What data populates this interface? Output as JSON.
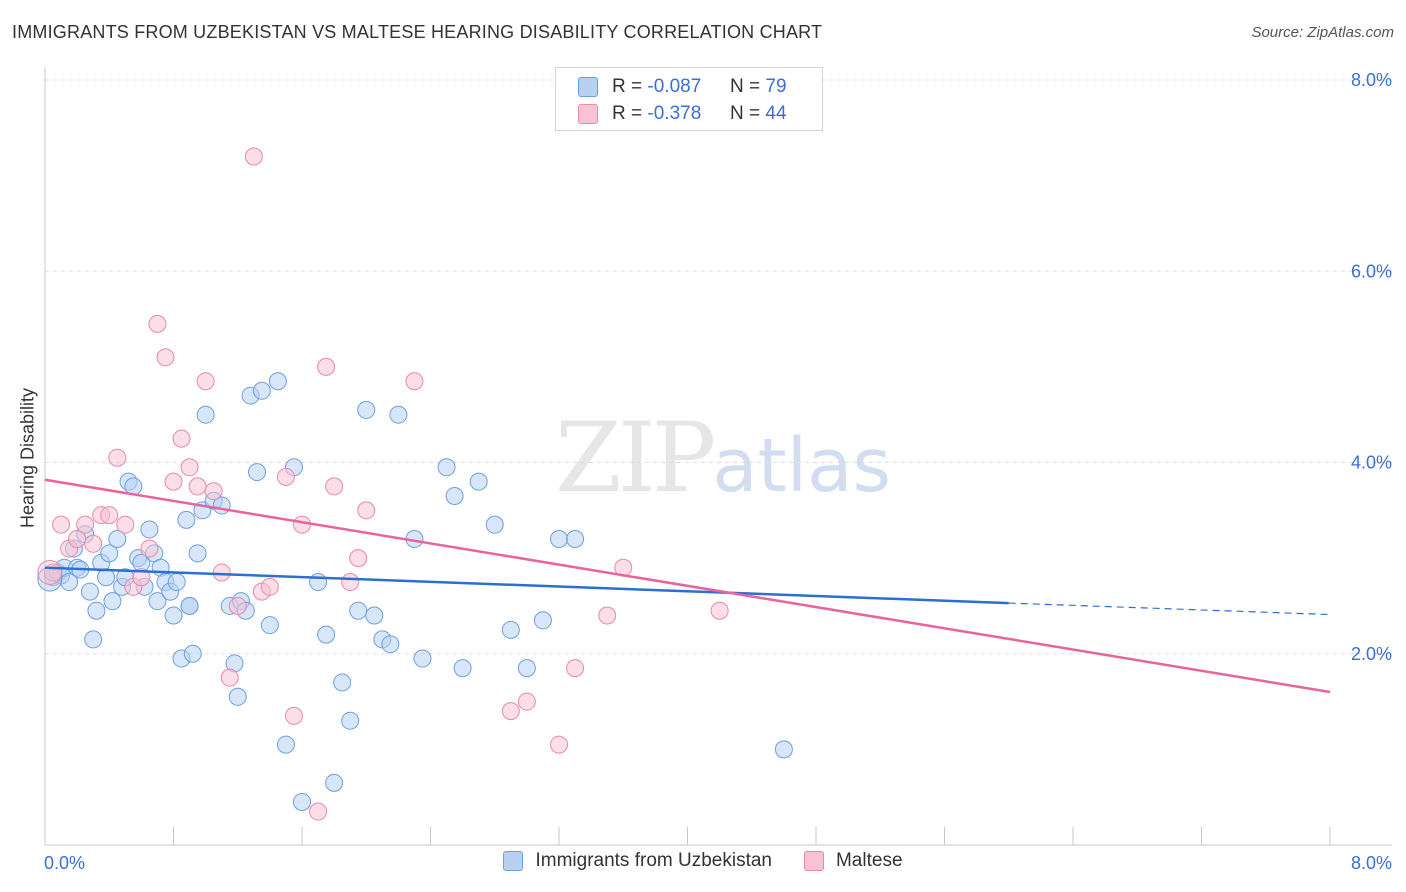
{
  "title": "IMMIGRANTS FROM UZBEKISTAN VS MALTESE HEARING DISABILITY CORRELATION CHART",
  "source": "Source: ZipAtlas.com",
  "watermark": {
    "zip": "ZIP",
    "atlas": "atlas"
  },
  "legend": {
    "rows": [
      {
        "r_label": "R =",
        "r_value": "-0.087",
        "n_label": "N =",
        "n_value": "79"
      },
      {
        "r_label": "R =",
        "r_value": "-0.378",
        "n_label": "N =",
        "n_value": "44"
      }
    ]
  },
  "colors": {
    "blue_fill": "#b7d1f2",
    "blue_stroke": "#6f9fdc",
    "blue_line": "#2c6fd1",
    "pink_fill": "#f7c3d4",
    "pink_stroke": "#e889a8",
    "pink_line": "#e8649a",
    "tick_label": "#3b6fd4",
    "grid": "#dedede"
  },
  "chart_data": {
    "type": "scatter",
    "title": "IMMIGRANTS FROM UZBEKISTAN VS MALTESE HEARING DISABILITY CORRELATION CHART",
    "xlabel": "",
    "ylabel": "Hearing Disability",
    "xlim": [
      0,
      8
    ],
    "ylim": [
      0,
      8
    ],
    "x_tick_labels": [
      "0.0%",
      "8.0%"
    ],
    "y_ticks": [
      2,
      4,
      6,
      8
    ],
    "y_tick_labels": [
      "2.0%",
      "4.0%",
      "6.0%",
      "8.0%"
    ],
    "series": [
      {
        "name": "Immigrants from Uzbekistan",
        "r": -0.087,
        "n": 79,
        "trend": {
          "x0": 0.0,
          "y0": 2.9,
          "x1": 6.0,
          "y1": 2.53,
          "dash_to_x": 8.0,
          "dash_to_y": 2.41
        },
        "points": [
          [
            0.05,
            2.8
          ],
          [
            0.08,
            2.85
          ],
          [
            0.1,
            2.82
          ],
          [
            0.12,
            2.9
          ],
          [
            0.15,
            2.75
          ],
          [
            0.18,
            3.1
          ],
          [
            0.2,
            2.9
          ],
          [
            0.22,
            2.88
          ],
          [
            0.25,
            3.25
          ],
          [
            0.28,
            2.65
          ],
          [
            0.3,
            2.15
          ],
          [
            0.32,
            2.45
          ],
          [
            0.35,
            2.95
          ],
          [
            0.38,
            2.8
          ],
          [
            0.4,
            3.05
          ],
          [
            0.42,
            2.55
          ],
          [
            0.45,
            3.2
          ],
          [
            0.48,
            2.7
          ],
          [
            0.5,
            2.8
          ],
          [
            0.52,
            3.8
          ],
          [
            0.55,
            3.75
          ],
          [
            0.58,
            3.0
          ],
          [
            0.6,
            2.95
          ],
          [
            0.62,
            2.7
          ],
          [
            0.65,
            3.3
          ],
          [
            0.68,
            3.05
          ],
          [
            0.7,
            2.55
          ],
          [
            0.72,
            2.9
          ],
          [
            0.75,
            2.75
          ],
          [
            0.78,
            2.65
          ],
          [
            0.8,
            2.4
          ],
          [
            0.82,
            2.75
          ],
          [
            0.85,
            1.95
          ],
          [
            0.88,
            3.4
          ],
          [
            0.9,
            2.5
          ],
          [
            0.92,
            2.0
          ],
          [
            0.95,
            3.05
          ],
          [
            0.98,
            3.5
          ],
          [
            1.0,
            4.5
          ],
          [
            1.05,
            3.6
          ],
          [
            1.1,
            3.55
          ],
          [
            1.15,
            2.5
          ],
          [
            1.18,
            1.9
          ],
          [
            1.2,
            1.55
          ],
          [
            1.22,
            2.55
          ],
          [
            1.25,
            2.45
          ],
          [
            1.28,
            4.7
          ],
          [
            1.32,
            3.9
          ],
          [
            1.35,
            4.75
          ],
          [
            1.4,
            2.3
          ],
          [
            1.45,
            4.85
          ],
          [
            1.5,
            1.05
          ],
          [
            1.55,
            3.95
          ],
          [
            1.6,
            0.45
          ],
          [
            1.7,
            2.75
          ],
          [
            1.75,
            2.2
          ],
          [
            1.8,
            0.65
          ],
          [
            1.85,
            1.7
          ],
          [
            1.9,
            1.3
          ],
          [
            1.95,
            2.45
          ],
          [
            2.0,
            4.55
          ],
          [
            2.05,
            2.4
          ],
          [
            2.1,
            2.15
          ],
          [
            2.15,
            2.1
          ],
          [
            2.2,
            4.5
          ],
          [
            2.3,
            3.2
          ],
          [
            2.35,
            1.95
          ],
          [
            2.5,
            3.95
          ],
          [
            2.55,
            3.65
          ],
          [
            2.6,
            1.85
          ],
          [
            2.7,
            3.8
          ],
          [
            2.8,
            3.35
          ],
          [
            2.9,
            2.25
          ],
          [
            3.0,
            1.85
          ],
          [
            3.1,
            2.35
          ],
          [
            3.2,
            3.2
          ],
          [
            3.3,
            3.2
          ],
          [
            4.6,
            1.0
          ],
          [
            0.9,
            2.5
          ]
        ]
      },
      {
        "name": "Maltese",
        "r": -0.378,
        "n": 44,
        "trend": {
          "x0": 0.0,
          "y0": 3.82,
          "x1": 8.0,
          "y1": 1.6
        },
        "points": [
          [
            0.05,
            2.85
          ],
          [
            0.1,
            3.35
          ],
          [
            0.15,
            3.1
          ],
          [
            0.2,
            3.2
          ],
          [
            0.25,
            3.35
          ],
          [
            0.3,
            3.15
          ],
          [
            0.35,
            3.45
          ],
          [
            0.4,
            3.45
          ],
          [
            0.45,
            4.05
          ],
          [
            0.5,
            3.35
          ],
          [
            0.55,
            2.7
          ],
          [
            0.6,
            2.8
          ],
          [
            0.65,
            3.1
          ],
          [
            0.7,
            5.45
          ],
          [
            0.75,
            5.1
          ],
          [
            0.8,
            3.8
          ],
          [
            0.85,
            4.25
          ],
          [
            0.9,
            3.95
          ],
          [
            0.95,
            3.75
          ],
          [
            1.0,
            4.85
          ],
          [
            1.05,
            3.7
          ],
          [
            1.1,
            2.85
          ],
          [
            1.15,
            1.75
          ],
          [
            1.2,
            2.5
          ],
          [
            1.3,
            7.2
          ],
          [
            1.35,
            2.65
          ],
          [
            1.4,
            2.7
          ],
          [
            1.5,
            3.85
          ],
          [
            1.55,
            1.35
          ],
          [
            1.6,
            3.35
          ],
          [
            1.7,
            0.35
          ],
          [
            1.75,
            5.0
          ],
          [
            1.8,
            3.75
          ],
          [
            1.9,
            2.75
          ],
          [
            1.95,
            3.0
          ],
          [
            2.0,
            3.5
          ],
          [
            2.3,
            4.85
          ],
          [
            2.9,
            1.4
          ],
          [
            3.0,
            1.5
          ],
          [
            3.2,
            1.05
          ],
          [
            3.3,
            1.85
          ],
          [
            3.5,
            2.4
          ],
          [
            3.6,
            2.9
          ],
          [
            4.2,
            2.45
          ]
        ]
      }
    ]
  },
  "bottom_legend": {
    "items": [
      {
        "label": "Immigrants from Uzbekistan"
      },
      {
        "label": "Maltese"
      }
    ]
  }
}
